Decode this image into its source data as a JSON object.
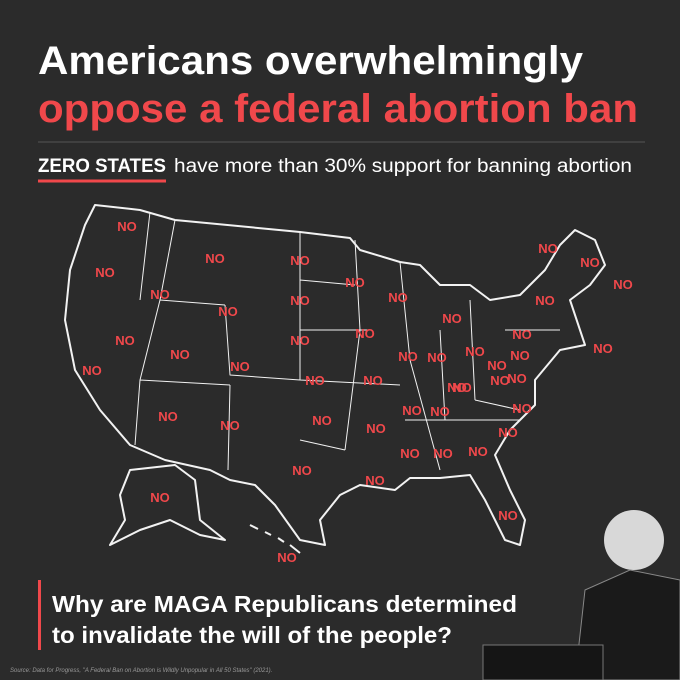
{
  "header": {
    "title_line1": "Americans overwhelmingly",
    "title_line2": "oppose a federal abortion ban",
    "subtitle_highlight": "ZERO STATES",
    "subtitle_rest": "have more than 30% support for banning abortion"
  },
  "map": {
    "state_labels": [
      "NO",
      "NO",
      "NO",
      "NO",
      "NO",
      "NO",
      "NO",
      "NO",
      "NO",
      "NO",
      "NO",
      "NO",
      "NO",
      "NO",
      "NO",
      "NO",
      "NO",
      "NO",
      "NO",
      "NO",
      "NO",
      "NO",
      "NO",
      "NO",
      "NO",
      "NO",
      "NO",
      "NO",
      "NO",
      "NO",
      "NO",
      "NO",
      "NO",
      "NO",
      "NO",
      "NO",
      "NO",
      "NO",
      "NO",
      "NO",
      "NO",
      "NO",
      "NO",
      "NO",
      "NO",
      "NO",
      "NO",
      "NO",
      "NO"
    ]
  },
  "footer": {
    "question_line1": "Why are MAGA Republicans determined",
    "question_line2": "to invalidate the will of the people?",
    "source": "Source: Data for Progress, \"A Federal Ban on Abortion is Wildly Unpopular in All 50 States\" (2021)."
  }
}
